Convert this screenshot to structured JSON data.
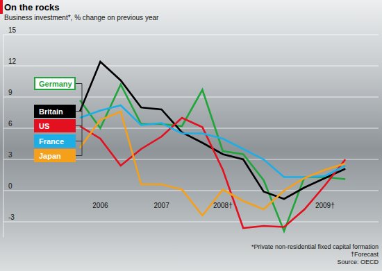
{
  "chart_data": {
    "type": "line",
    "title": "On the rocks",
    "subtitle": "Business investment*, % change on previous year",
    "notes": [
      "*Private non-residential fixed capital formation",
      "†Forecast",
      "Source: OECD"
    ],
    "categories": [
      null,
      "2006",
      null,
      null,
      "2007",
      null,
      null,
      "2008†",
      null,
      null,
      null,
      null,
      "2009†",
      null
    ],
    "series": [
      {
        "name": "Germany",
        "color": "#1fa53a",
        "values": [
          8.7,
          6.0,
          10.2,
          6.4,
          6.4,
          6.2,
          9.7,
          3.8,
          3.5,
          1.0,
          -3.9,
          1.3,
          1.3,
          1.1
        ]
      },
      {
        "name": "Britain",
        "color": "#000000",
        "values": [
          7.6,
          12.4,
          10.6,
          8.0,
          7.8,
          5.6,
          4.6,
          3.5,
          3.0,
          -0.1,
          -0.8,
          0.3,
          1.2,
          2.1
        ]
      },
      {
        "name": "US",
        "color": "#e3111f",
        "values": [
          6.2,
          5.0,
          2.4,
          4.0,
          5.2,
          7.0,
          6.1,
          2.0,
          -3.6,
          -3.4,
          -3.5,
          -1.8,
          0.5,
          3.0
        ]
      },
      {
        "name": "France",
        "color": "#1eaee6",
        "values": [
          7.0,
          7.7,
          8.2,
          6.3,
          6.5,
          5.5,
          5.5,
          5.0,
          4.0,
          3.0,
          1.3,
          1.3,
          1.4,
          2.4
        ]
      },
      {
        "name": "Japan",
        "color": "#f5a01a",
        "values": [
          4.1,
          6.8,
          7.6,
          0.6,
          0.6,
          0.1,
          -2.4,
          0.1,
          -1.0,
          -1.8,
          0.0,
          1.2,
          2.0,
          2.6
        ]
      }
    ],
    "ylim": [
      -4.5,
      15
    ],
    "yticks": [
      -3,
      0,
      3,
      6,
      9,
      12,
      15
    ],
    "grid": true,
    "legend": "left"
  }
}
